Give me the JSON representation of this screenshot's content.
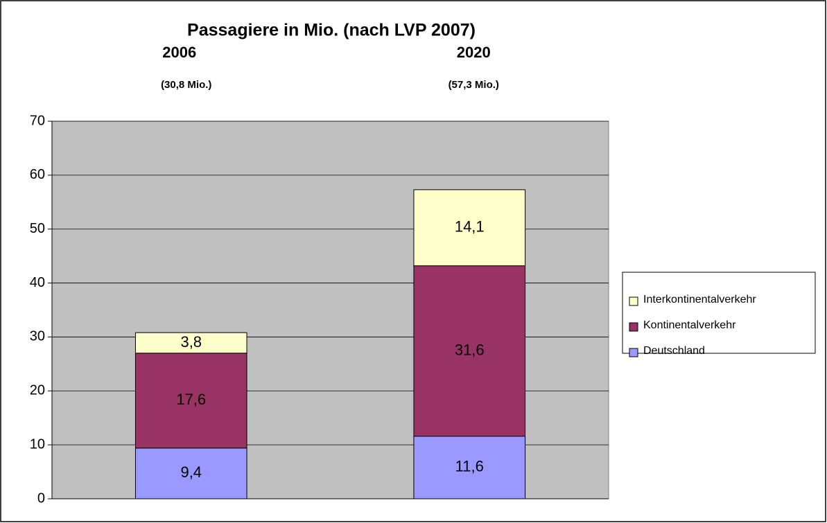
{
  "chart_data": {
    "type": "stacked_bar",
    "title": "Passagiere in Mio. (nach LVP 2007)",
    "categories": [
      "2006",
      "2020"
    ],
    "category_totals": [
      "(30,8 Mio.)",
      "(57,3 Mio.)"
    ],
    "series": [
      {
        "name": "Deutschland",
        "color": "#9999ff",
        "values": [
          9.4,
          11.6
        ],
        "value_labels": [
          "9,4",
          "11,6"
        ]
      },
      {
        "name": "Kontinentalverkehr",
        "color": "#993366",
        "values": [
          17.6,
          31.6
        ],
        "value_labels": [
          "17,6",
          "31,6"
        ]
      },
      {
        "name": "Interkontinentalverkehr",
        "color": "#ffffcc",
        "values": [
          3.8,
          14.1
        ],
        "value_labels": [
          "3,8",
          "14,1"
        ]
      }
    ],
    "ylim": [
      0,
      70
    ],
    "yticks": [
      0,
      10,
      20,
      30,
      40,
      50,
      60,
      70
    ],
    "grid": true,
    "plot_background": "#c0c0c0",
    "legend": "right"
  }
}
